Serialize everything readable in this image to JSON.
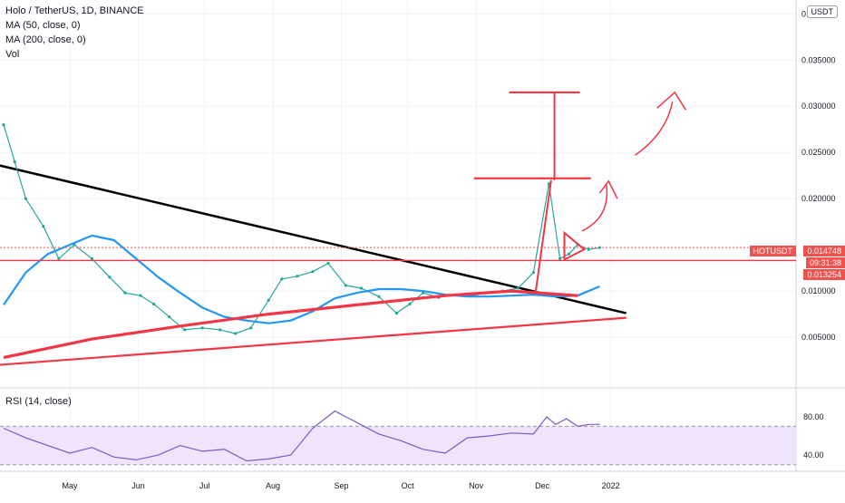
{
  "header": {
    "title": "Holo / TetherUS, 1D, BINANCE",
    "indicators": [
      "MA (50, close, 0)",
      "MA (200, close, 0)",
      "Vol"
    ],
    "currency_button": "USDT"
  },
  "rsi": {
    "label": "RSI (14, close)",
    "ticks": [
      "80.00",
      "40.00"
    ]
  },
  "price_tags": [
    {
      "label": "HOTUSDT",
      "color": "#ef5350"
    },
    {
      "label": "0.014748",
      "color": "#ef5350"
    },
    {
      "label": "09:31:38",
      "color": "#ef5350"
    },
    {
      "label": "0.013254",
      "color": "#ef5350"
    }
  ],
  "chart_data": {
    "type": "line",
    "title": "",
    "xlabel": "",
    "ylabel": "",
    "x_tick_labels": [
      "May",
      "Jun",
      "Jul",
      "Aug",
      "Sep",
      "Oct",
      "Nov",
      "Dec",
      "2022"
    ],
    "y_tick_labels": [
      "0.040000",
      "0.035000",
      "0.030000",
      "0.025000",
      "0.020000",
      "0.010000",
      "0.005000"
    ],
    "ylim": [
      0.0,
      0.0415
    ],
    "x_unit": "days since Apr 1 2021 (x axis printed as month names)",
    "grid": true,
    "series": [
      {
        "name": "",
        "kind": "close",
        "x": [
          0,
          5,
          10,
          18,
          25,
          32,
          40,
          48,
          55,
          62,
          68,
          75,
          82,
          90,
          98,
          105,
          112,
          120,
          126,
          133,
          140,
          147,
          155,
          162,
          170,
          178,
          184,
          190,
          197,
          205,
          212,
          219,
          226,
          233,
          240,
          247,
          252,
          256,
          260,
          265,
          270
        ],
        "values": [
          0.028,
          0.024,
          0.02,
          0.017,
          0.0135,
          0.015,
          0.0135,
          0.0115,
          0.0098,
          0.0095,
          0.0086,
          0.0072,
          0.0058,
          0.006,
          0.0058,
          0.0054,
          0.006,
          0.009,
          0.0113,
          0.0116,
          0.0121,
          0.013,
          0.0106,
          0.0103,
          0.0094,
          0.0076,
          0.0086,
          0.0098,
          0.0093,
          0.0096,
          0.0095,
          0.0098,
          0.01,
          0.0103,
          0.012,
          0.0216,
          0.0135,
          0.014,
          0.015,
          0.0145,
          0.0147
        ]
      },
      {
        "name": "",
        "kind": "ma50",
        "x": [
          0,
          10,
          20,
          30,
          40,
          50,
          60,
          70,
          80,
          90,
          100,
          110,
          120,
          130,
          140,
          150,
          160,
          170,
          180,
          190,
          200,
          210,
          220,
          230,
          240,
          250,
          260,
          270
        ],
        "values": [
          0.0085,
          0.012,
          0.014,
          0.015,
          0.016,
          0.0155,
          0.0135,
          0.0115,
          0.0098,
          0.0082,
          0.0072,
          0.0068,
          0.0065,
          0.0068,
          0.0078,
          0.0092,
          0.0098,
          0.0102,
          0.0102,
          0.01,
          0.0096,
          0.0094,
          0.0094,
          0.0095,
          0.0096,
          0.0094,
          0.0095,
          0.0105
        ]
      },
      {
        "name": "",
        "kind": "ma200",
        "x": [
          0,
          40,
          80,
          120,
          160,
          200,
          230,
          260
        ],
        "values": [
          0.0028,
          0.0048,
          0.0062,
          0.0075,
          0.0085,
          0.0095,
          0.01,
          0.0095
        ]
      }
    ],
    "annotations": {
      "descending_trendline": [
        {
          "x": -2,
          "y": 0.0236
        },
        {
          "x": 282,
          "y": 0.0076
        }
      ],
      "support_line": [
        {
          "x": -2,
          "y": 0.002
        },
        {
          "x": 282,
          "y": 0.0071
        }
      ],
      "horizontal_levels": [
        0.0315,
        0.0222,
        0.0133
      ],
      "vertical_target_x": 249.5
    },
    "rsi_series": {
      "x": [
        0,
        10,
        20,
        30,
        40,
        50,
        60,
        70,
        80,
        90,
        100,
        110,
        120,
        130,
        140,
        150,
        160,
        170,
        180,
        190,
        200,
        210,
        220,
        230,
        240,
        246,
        250,
        255,
        260,
        265,
        270
      ],
      "values": [
        68,
        58,
        50,
        42,
        48,
        38,
        35,
        40,
        50,
        44,
        46,
        34,
        36,
        40,
        68,
        86,
        74,
        62,
        55,
        46,
        42,
        58,
        60,
        63,
        62,
        80,
        72,
        78,
        70,
        72,
        72
      ]
    },
    "rsi_ylim": [
      25,
      95
    ],
    "rsi_bands": [
      70,
      30
    ]
  }
}
